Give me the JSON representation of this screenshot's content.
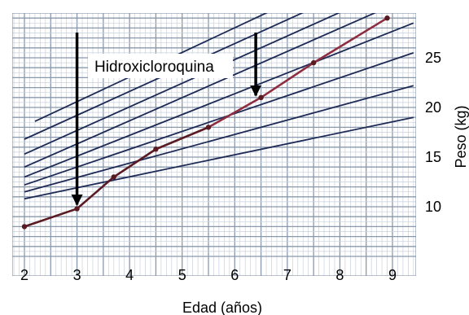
{
  "chart_data": {
    "type": "line",
    "title": "",
    "xlabel": "Edad (años)",
    "ylabel": "Peso (kg)",
    "xlim": [
      1.8,
      9.4
    ],
    "ylim": [
      5,
      30
    ],
    "x_ticks": [
      "2",
      "3",
      "4",
      "5",
      "6",
      "7",
      "8",
      "9"
    ],
    "y_ticks": [
      "10",
      "15",
      "20",
      "25"
    ],
    "y_tick_values": [
      10,
      15,
      20,
      25
    ],
    "y_axis_position": "right",
    "grid": true,
    "series": [
      {
        "points": [
          [
            2.0,
            8.0
          ],
          [
            3.0,
            9.8
          ],
          [
            3.7,
            13.0
          ],
          [
            4.5,
            15.8
          ],
          [
            5.5,
            18.0
          ],
          [
            6.5,
            21.0
          ],
          [
            7.5,
            24.5
          ],
          [
            8.9,
            29.0
          ]
        ]
      }
    ],
    "reference_curves": [
      {
        "points": [
          [
            2.0,
            10.8
          ],
          [
            9.4,
            19.0
          ]
        ]
      },
      {
        "points": [
          [
            2.0,
            11.5
          ],
          [
            9.4,
            22.2
          ]
        ]
      },
      {
        "points": [
          [
            2.0,
            12.2
          ],
          [
            9.4,
            25.5
          ]
        ]
      },
      {
        "points": [
          [
            2.0,
            13.0
          ],
          [
            9.4,
            28.5
          ]
        ]
      },
      {
        "points": [
          [
            2.0,
            14.0
          ],
          [
            9.3,
            31.0
          ]
        ]
      },
      {
        "points": [
          [
            2.0,
            15.3
          ],
          [
            8.6,
            31.0
          ]
        ]
      },
      {
        "points": [
          [
            2.0,
            16.8
          ],
          [
            7.9,
            31.0
          ]
        ]
      },
      {
        "points": [
          [
            2.2,
            18.6
          ],
          [
            7.2,
            31.0
          ]
        ]
      }
    ],
    "annotations": [
      {
        "text": "Hidroxicloroquina",
        "arrows": [
          {
            "x": 3.0,
            "y": 10.2
          },
          {
            "x": 6.4,
            "y": 21.2
          }
        ]
      }
    ],
    "colors": {
      "grid_major": "#8a98ac",
      "grid_minor": "#c9d1dc",
      "reference_curve": "#1d2a55",
      "data_line": "#5a1a22",
      "data_line_late": "#8e2d40",
      "arrow": "#000000"
    }
  }
}
